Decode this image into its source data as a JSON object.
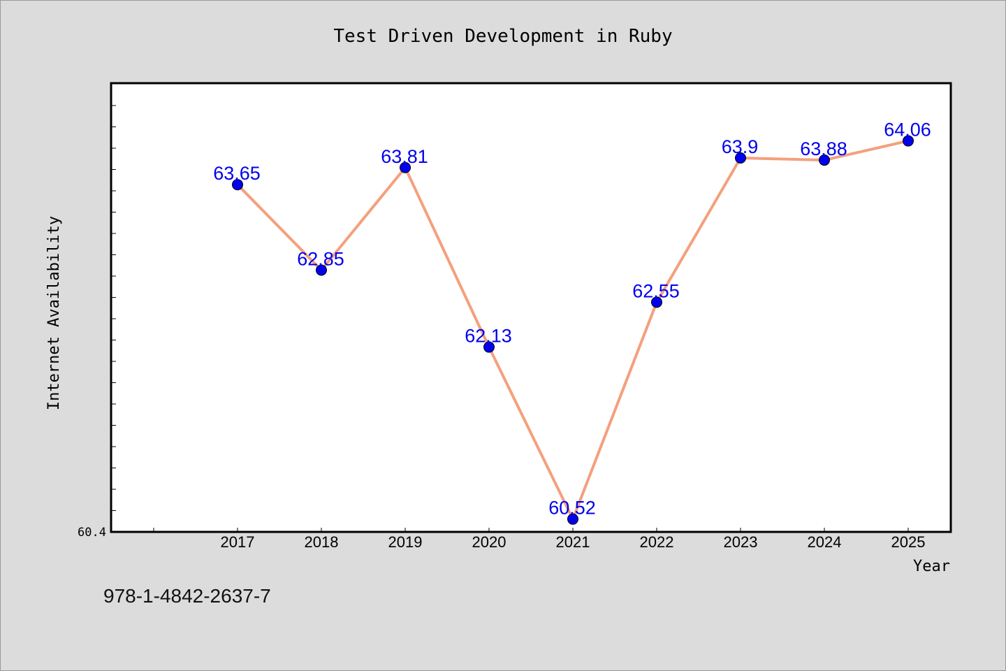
{
  "chart_data": {
    "type": "line",
    "title": "Test Driven Development in Ruby",
    "xlabel": "Year",
    "ylabel": "Internet Availability",
    "categories": [
      "2017",
      "2018",
      "2019",
      "2020",
      "2021",
      "2022",
      "2023",
      "2024",
      "2025"
    ],
    "values": [
      63.65,
      62.85,
      63.81,
      62.13,
      60.52,
      62.55,
      63.9,
      63.88,
      64.06
    ],
    "data_labels": [
      "63.65",
      "62.85",
      "63.81",
      "62.13",
      "60.52",
      "62.55",
      "63.9",
      "63.88",
      "64.06"
    ],
    "y_tick_labels": [
      "60.4"
    ],
    "ylim": [
      60.4,
      64.6
    ],
    "grid": false,
    "colors": {
      "line": "#f4a07e",
      "marker": "#0000ee",
      "label": "#0000ee",
      "background": "#dcdcdc",
      "plot_background": "#ffffff"
    }
  },
  "footer_text": "978-1-4842-2637-7"
}
